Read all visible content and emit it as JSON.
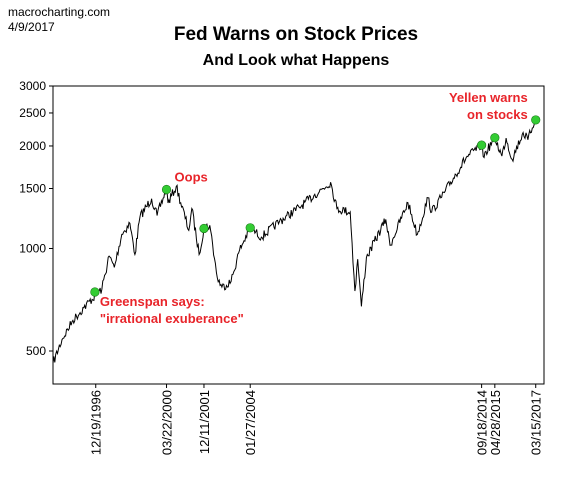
{
  "header": {
    "source": "macrocharting.com",
    "date": "4/9/2017"
  },
  "chart_data": {
    "type": "line",
    "title": "Fed Warns on Stock Prices",
    "subtitle": "And Look what Happens",
    "xlabel": "",
    "ylabel": "",
    "y_scale": "log",
    "ylim": [
      400,
      3000
    ],
    "xlim": [
      "1995-01-01",
      "2017-08-01"
    ],
    "y_ticks": [
      500,
      1000,
      1500,
      2000,
      2500,
      3000
    ],
    "x_tick_labels": [
      {
        "date": "1996-12-19",
        "label": "12/19/1996"
      },
      {
        "date": "2000-03-22",
        "label": "03/22/2000"
      },
      {
        "date": "2001-12-11",
        "label": "12/11/2001"
      },
      {
        "date": "2004-01-27",
        "label": "01/27/2004"
      },
      {
        "date": "2014-09-18",
        "label": "09/18/2014"
      },
      {
        "date": "2015-04-28",
        "label": "04/28/2015"
      },
      {
        "date": "2017-03-15",
        "label": "03/15/2017"
      }
    ],
    "grid": false,
    "line_color": "#000000",
    "marker_color": "#33cc33",
    "annotation_color": "#e8242a",
    "series": [
      {
        "values": [
          [
            "1995-01-01",
            460
          ],
          [
            "1995-06-01",
            540
          ],
          [
            "1995-12-01",
            615
          ],
          [
            "1996-06-01",
            670
          ],
          [
            "1996-12-19",
            730
          ],
          [
            "1997-04-01",
            760
          ],
          [
            "1997-08-01",
            950
          ],
          [
            "1997-10-27",
            880
          ],
          [
            "1998-03-01",
            1100
          ],
          [
            "1998-07-15",
            1185
          ],
          [
            "1998-10-08",
            960
          ],
          [
            "1999-01-01",
            1240
          ],
          [
            "1999-07-15",
            1400
          ],
          [
            "1999-10-15",
            1250
          ],
          [
            "2000-03-22",
            1500
          ],
          [
            "2000-04-15",
            1360
          ],
          [
            "2000-09-01",
            1520
          ],
          [
            "2001-04-01",
            1130
          ],
          [
            "2001-05-21",
            1310
          ],
          [
            "2001-09-21",
            960
          ],
          [
            "2001-12-11",
            1150
          ],
          [
            "2002-03-19",
            1170
          ],
          [
            "2002-07-23",
            820
          ],
          [
            "2002-10-09",
            770
          ],
          [
            "2003-03-11",
            800
          ],
          [
            "2003-08-01",
            990
          ],
          [
            "2004-01-27",
            1150
          ],
          [
            "2004-08-01",
            1080
          ],
          [
            "2005-06-01",
            1200
          ],
          [
            "2006-05-01",
            1320
          ],
          [
            "2007-01-01",
            1430
          ],
          [
            "2007-10-09",
            1565
          ],
          [
            "2008-01-22",
            1310
          ],
          [
            "2008-09-01",
            1280
          ],
          [
            "2008-11-20",
            750
          ],
          [
            "2009-01-06",
            930
          ],
          [
            "2009-03-09",
            676
          ],
          [
            "2009-06-01",
            940
          ],
          [
            "2010-04-23",
            1217
          ],
          [
            "2010-07-02",
            1022
          ],
          [
            "2011-04-29",
            1364
          ],
          [
            "2011-10-03",
            1099
          ],
          [
            "2012-04-01",
            1410
          ],
          [
            "2012-06-01",
            1280
          ],
          [
            "2013-01-01",
            1460
          ],
          [
            "2013-12-31",
            1848
          ],
          [
            "2014-09-18",
            2011
          ],
          [
            "2014-10-15",
            1862
          ],
          [
            "2015-04-28",
            2115
          ],
          [
            "2015-08-25",
            1867
          ],
          [
            "2015-11-03",
            2109
          ],
          [
            "2016-02-11",
            1829
          ],
          [
            "2016-08-15",
            2190
          ],
          [
            "2016-11-04",
            2085
          ],
          [
            "2017-03-01",
            2395
          ],
          [
            "2017-03-15",
            2385
          ],
          [
            "2017-04-07",
            2355
          ]
        ]
      }
    ],
    "markers": [
      {
        "date": "1996-12-05",
        "value": 745
      },
      {
        "date": "2000-03-22",
        "value": 1490
      },
      {
        "date": "2001-12-11",
        "value": 1145
      },
      {
        "date": "2004-01-27",
        "value": 1150
      },
      {
        "date": "2014-09-18",
        "value": 2011
      },
      {
        "date": "2015-04-28",
        "value": 2115
      },
      {
        "date": "2017-03-15",
        "value": 2385
      }
    ],
    "annotations": [
      {
        "lines": [
          "Greenspan says:",
          "\"irrational exuberance\""
        ],
        "anchor": "1996-12-05"
      },
      {
        "lines": [
          "Oops"
        ],
        "anchor": "2000-03-22"
      },
      {
        "lines": [
          "Yellen warns",
          "on stocks"
        ],
        "anchor": "2017-03-15"
      }
    ]
  }
}
